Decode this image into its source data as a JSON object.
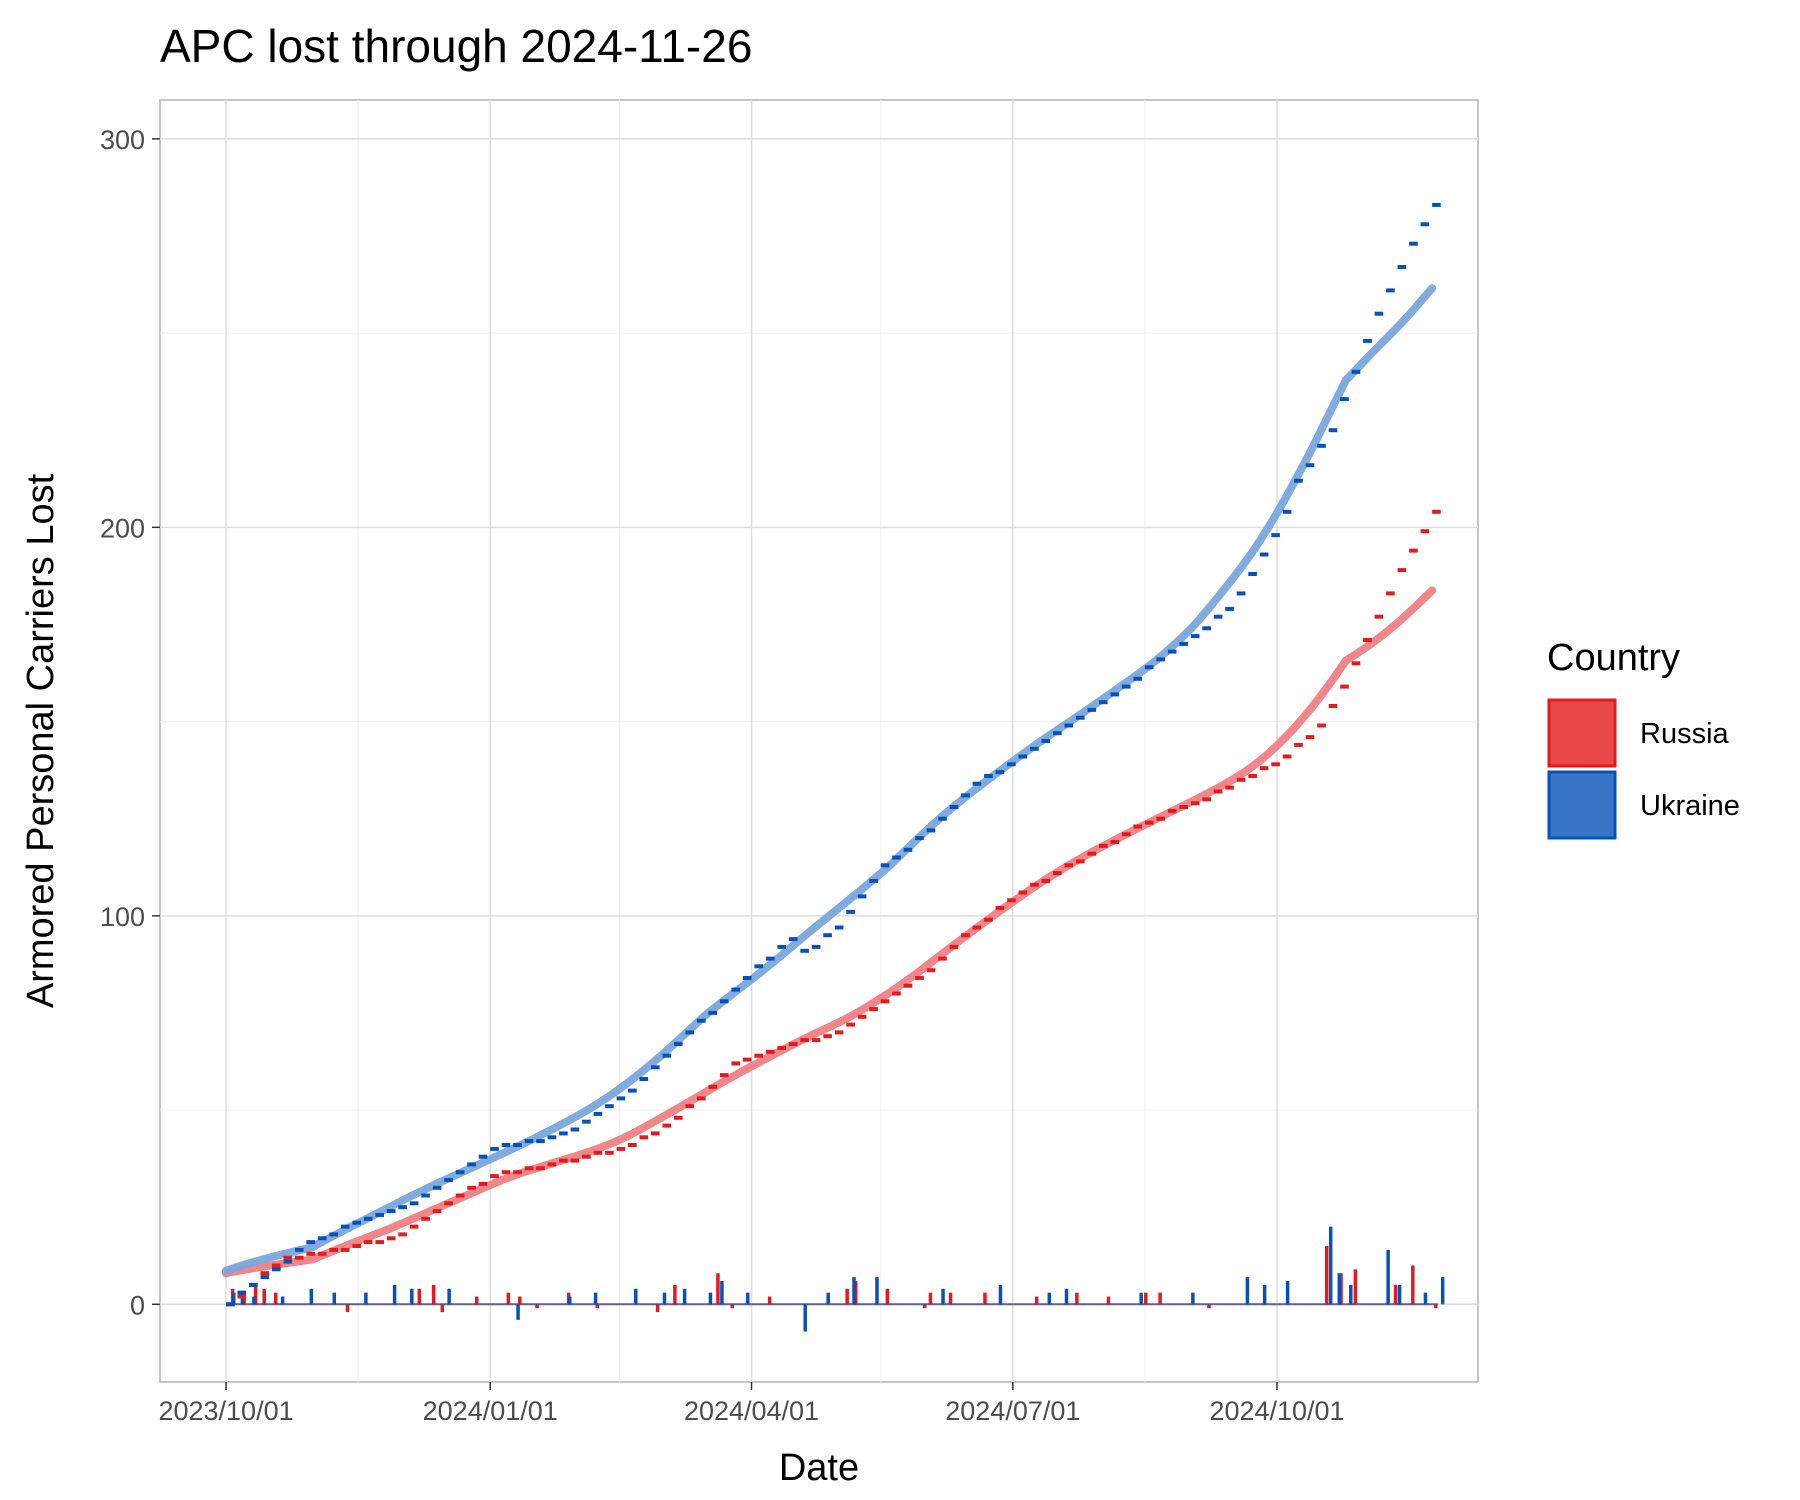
{
  "chart_data": {
    "type": "line",
    "title": "APC lost through 2024-11-26",
    "xlabel": "Date",
    "ylabel": "Armored Personal Carriers Lost",
    "x_range": [
      "2023-09-08",
      "2024-12-10"
    ],
    "ylim": [
      -20,
      310
    ],
    "x_ticks": [
      {
        "date": "2023-10-01",
        "label": "2023/10/01"
      },
      {
        "date": "2024-01-01",
        "label": "2024/01/01"
      },
      {
        "date": "2024-04-01",
        "label": "2024/04/01"
      },
      {
        "date": "2024-07-01",
        "label": "2024/07/01"
      },
      {
        "date": "2024-10-01",
        "label": "2024/10/01"
      }
    ],
    "y_ticks": [
      0,
      100,
      200,
      300
    ],
    "y_minor": [
      50,
      150,
      250
    ],
    "grid": true,
    "legend": {
      "title": "Country",
      "placement": "right"
    },
    "series": [
      {
        "name": "Russia",
        "color": "#e41a1c",
        "smooth_color": "#ef7f84",
        "cumulative": [
          [
            "2023-10-01",
            0
          ],
          [
            "2023-10-08",
            4
          ],
          [
            "2023-10-15",
            9
          ],
          [
            "2023-10-22",
            12
          ],
          [
            "2023-11-01",
            13
          ],
          [
            "2023-11-15",
            15
          ],
          [
            "2023-12-01",
            18
          ],
          [
            "2023-12-15",
            26
          ],
          [
            "2024-01-01",
            33
          ],
          [
            "2024-01-15",
            35
          ],
          [
            "2024-02-01",
            38
          ],
          [
            "2024-02-15",
            40
          ],
          [
            "2024-03-01",
            46
          ],
          [
            "2024-03-15",
            54
          ],
          [
            "2024-03-25",
            62
          ],
          [
            "2024-04-15",
            67
          ],
          [
            "2024-05-01",
            70
          ],
          [
            "2024-05-15",
            77
          ],
          [
            "2024-06-01",
            86
          ],
          [
            "2024-06-15",
            96
          ],
          [
            "2024-07-01",
            105
          ],
          [
            "2024-07-15",
            111
          ],
          [
            "2024-08-01",
            118
          ],
          [
            "2024-08-15",
            124
          ],
          [
            "2024-09-01",
            129
          ],
          [
            "2024-09-15",
            134
          ],
          [
            "2024-10-01",
            140
          ],
          [
            "2024-10-15",
            149
          ],
          [
            "2024-10-25",
            162
          ],
          [
            "2024-11-05",
            178
          ],
          [
            "2024-11-15",
            193
          ],
          [
            "2024-11-26",
            207
          ]
        ],
        "daily": [
          [
            "2023-10-04",
            4
          ],
          [
            "2023-10-08",
            3
          ],
          [
            "2023-10-12",
            5
          ],
          [
            "2023-10-15",
            4
          ],
          [
            "2023-10-19",
            3
          ],
          [
            "2023-11-13",
            -2
          ],
          [
            "2023-12-08",
            4
          ],
          [
            "2023-12-13",
            5
          ],
          [
            "2023-12-16",
            -2
          ],
          [
            "2023-12-28",
            2
          ],
          [
            "2024-01-08",
            3
          ],
          [
            "2024-01-12",
            2
          ],
          [
            "2024-01-18",
            -1
          ],
          [
            "2024-01-29",
            3
          ],
          [
            "2024-02-08",
            -1
          ],
          [
            "2024-02-29",
            -2
          ],
          [
            "2024-03-06",
            5
          ],
          [
            "2024-03-21",
            8
          ],
          [
            "2024-03-26",
            -1
          ],
          [
            "2024-04-08",
            2
          ],
          [
            "2024-05-05",
            4
          ],
          [
            "2024-05-08",
            6
          ],
          [
            "2024-05-19",
            4
          ],
          [
            "2024-06-01",
            -1
          ],
          [
            "2024-06-03",
            3
          ],
          [
            "2024-06-10",
            3
          ],
          [
            "2024-06-22",
            3
          ],
          [
            "2024-07-10",
            2
          ],
          [
            "2024-07-24",
            3
          ],
          [
            "2024-08-04",
            2
          ],
          [
            "2024-08-17",
            3
          ],
          [
            "2024-08-22",
            3
          ],
          [
            "2024-09-08",
            -1
          ],
          [
            "2024-10-19",
            15
          ],
          [
            "2024-10-24",
            8
          ],
          [
            "2024-10-29",
            9
          ],
          [
            "2024-11-12",
            5
          ],
          [
            "2024-11-18",
            10
          ],
          [
            "2024-11-26",
            -1
          ]
        ]
      },
      {
        "name": "Ukraine",
        "color": "#0652b8",
        "smooth_color": "#7aa7da",
        "cumulative": [
          [
            "2023-10-01",
            0
          ],
          [
            "2023-10-08",
            5
          ],
          [
            "2023-10-15",
            8
          ],
          [
            "2023-10-22",
            12
          ],
          [
            "2023-11-01",
            17
          ],
          [
            "2023-11-15",
            21
          ],
          [
            "2023-12-01",
            25
          ],
          [
            "2023-12-15",
            31
          ],
          [
            "2024-01-01",
            40
          ],
          [
            "2024-01-15",
            42
          ],
          [
            "2024-02-01",
            46
          ],
          [
            "2024-02-15",
            53
          ],
          [
            "2024-03-01",
            64
          ],
          [
            "2024-03-15",
            74
          ],
          [
            "2024-04-01",
            86
          ],
          [
            "2024-04-15",
            95
          ],
          [
            "2024-04-19",
            90
          ],
          [
            "2024-05-01",
            98
          ],
          [
            "2024-05-15",
            112
          ],
          [
            "2024-06-01",
            122
          ],
          [
            "2024-06-15",
            133
          ],
          [
            "2024-07-01",
            140
          ],
          [
            "2024-07-15",
            147
          ],
          [
            "2024-08-01",
            155
          ],
          [
            "2024-08-15",
            163
          ],
          [
            "2024-09-01",
            172
          ],
          [
            "2024-09-15",
            180
          ],
          [
            "2024-10-01",
            200
          ],
          [
            "2024-10-06",
            211
          ],
          [
            "2024-10-19",
            225
          ],
          [
            "2024-11-01",
            250
          ],
          [
            "2024-11-15",
            272
          ],
          [
            "2024-11-26",
            285
          ]
        ],
        "daily": [
          [
            "2023-10-03",
            3
          ],
          [
            "2023-10-06",
            2
          ],
          [
            "2023-10-10",
            2
          ],
          [
            "2023-10-20",
            2
          ],
          [
            "2023-10-30",
            4
          ],
          [
            "2023-11-07",
            3
          ],
          [
            "2023-11-18",
            3
          ],
          [
            "2023-11-28",
            5
          ],
          [
            "2023-12-04",
            4
          ],
          [
            "2023-12-17",
            4
          ],
          [
            "2024-01-10",
            -4
          ],
          [
            "2024-01-28",
            2
          ],
          [
            "2024-02-06",
            3
          ],
          [
            "2024-02-20",
            4
          ],
          [
            "2024-03-01",
            3
          ],
          [
            "2024-03-08",
            4
          ],
          [
            "2024-03-17",
            3
          ],
          [
            "2024-03-21",
            6
          ],
          [
            "2024-03-30",
            3
          ],
          [
            "2024-04-19",
            -7
          ],
          [
            "2024-04-27",
            3
          ],
          [
            "2024-05-06",
            7
          ],
          [
            "2024-05-14",
            7
          ],
          [
            "2024-06-06",
            4
          ],
          [
            "2024-06-26",
            5
          ],
          [
            "2024-07-13",
            3
          ],
          [
            "2024-07-19",
            4
          ],
          [
            "2024-08-14",
            3
          ],
          [
            "2024-09-01",
            3
          ],
          [
            "2024-09-20",
            7
          ],
          [
            "2024-09-26",
            5
          ],
          [
            "2024-10-04",
            6
          ],
          [
            "2024-10-19",
            20
          ],
          [
            "2024-10-22",
            8
          ],
          [
            "2024-10-26",
            5
          ],
          [
            "2024-11-08",
            14
          ],
          [
            "2024-11-12",
            5
          ],
          [
            "2024-11-21",
            3
          ],
          [
            "2024-11-27",
            7
          ]
        ]
      }
    ]
  }
}
